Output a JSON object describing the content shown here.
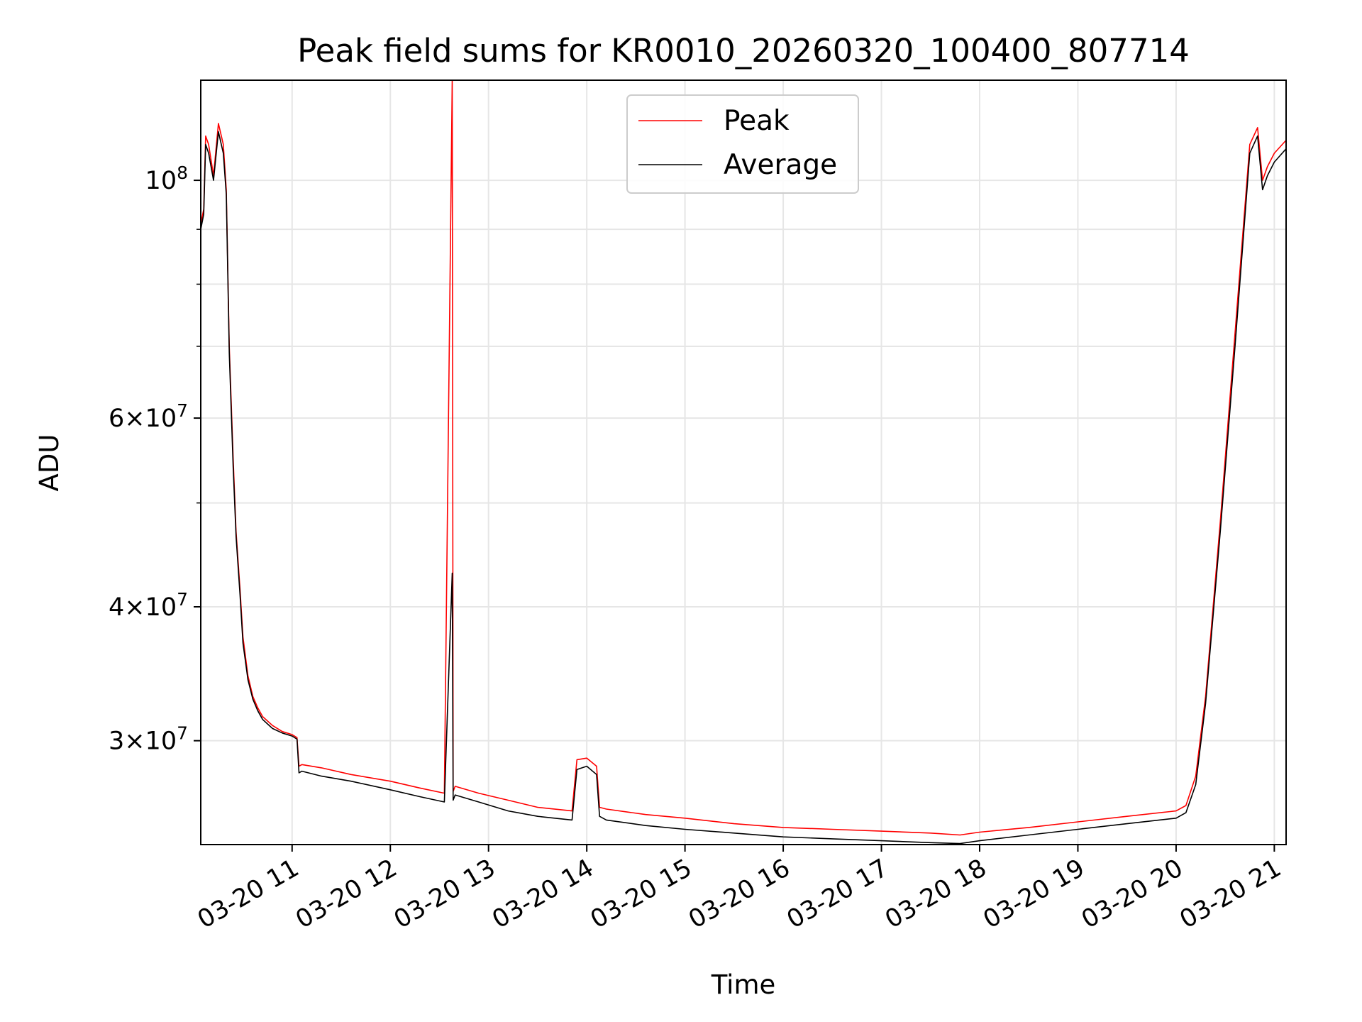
{
  "chart_data": {
    "type": "line",
    "title": "Peak field sums for KR0010_20260320_100400_807714",
    "xlabel": "Time",
    "ylabel": "ADU",
    "yscale": "log",
    "xlim_hours": [
      10.07,
      21.12
    ],
    "ylim": [
      24000000,
      124000000
    ],
    "grid": true,
    "legend": {
      "position": "top-center",
      "entries": [
        "Peak",
        "Average"
      ]
    },
    "x_ticks": [
      {
        "hour": 11,
        "label": "03-20 11"
      },
      {
        "hour": 12,
        "label": "03-20 12"
      },
      {
        "hour": 13,
        "label": "03-20 13"
      },
      {
        "hour": 14,
        "label": "03-20 14"
      },
      {
        "hour": 15,
        "label": "03-20 15"
      },
      {
        "hour": 16,
        "label": "03-20 16"
      },
      {
        "hour": 17,
        "label": "03-20 17"
      },
      {
        "hour": 18,
        "label": "03-20 18"
      },
      {
        "hour": 19,
        "label": "03-20 19"
      },
      {
        "hour": 20,
        "label": "03-20 20"
      },
      {
        "hour": 21,
        "label": "03-20 21"
      }
    ],
    "y_ticks_major": [
      {
        "value": 30000000,
        "base": "3",
        "exp": "7"
      },
      {
        "value": 40000000,
        "base": "4",
        "exp": "7"
      },
      {
        "value": 60000000,
        "base": "6",
        "exp": "7"
      },
      {
        "value": 100000000,
        "base": "",
        "exp": "8"
      }
    ],
    "y_grid_minor": [
      50000000,
      70000000,
      80000000,
      90000000
    ],
    "series": [
      {
        "name": "Peak",
        "color": "#ff0000",
        "x_hours": [
          10.07,
          10.1,
          10.12,
          10.15,
          10.2,
          10.25,
          10.3,
          10.33,
          10.36,
          10.4,
          10.43,
          10.47,
          10.5,
          10.55,
          10.6,
          10.65,
          10.7,
          10.8,
          10.9,
          11.0,
          11.05,
          11.07,
          11.1,
          11.3,
          11.6,
          12.0,
          12.3,
          12.55,
          12.63,
          12.64,
          12.66,
          12.9,
          13.2,
          13.5,
          13.85,
          13.9,
          14.0,
          14.1,
          14.13,
          14.2,
          14.6,
          15.0,
          15.5,
          16.0,
          16.5,
          17.0,
          17.5,
          17.8,
          18.0,
          18.5,
          19.0,
          19.5,
          20.0,
          20.1,
          20.2,
          20.3,
          20.45,
          20.6,
          20.75,
          20.83,
          20.88,
          20.93,
          21.0,
          21.12
        ],
        "values": [
          91000000,
          94000000,
          110000000,
          108000000,
          101000000,
          113000000,
          108000000,
          98000000,
          70000000,
          55000000,
          47000000,
          41500000,
          37500000,
          34500000,
          33000000,
          32200000,
          31600000,
          31000000,
          30600000,
          30400000,
          30200000,
          28400000,
          28500000,
          28300000,
          27900000,
          27500000,
          27100000,
          26800000,
          124000000,
          26900000,
          27200000,
          26800000,
          26400000,
          26000000,
          25800000,
          28800000,
          28900000,
          28400000,
          26000000,
          25900000,
          25600000,
          25400000,
          25100000,
          24900000,
          24800000,
          24700000,
          24600000,
          24500000,
          24650000,
          24900000,
          25200000,
          25500000,
          25800000,
          26100000,
          27800000,
          33000000,
          48000000,
          72000000,
          108000000,
          112000000,
          100000000,
          103000000,
          106000000,
          109000000
        ]
      },
      {
        "name": "Average",
        "color": "#000000",
        "x_hours": [
          10.07,
          10.1,
          10.12,
          10.15,
          10.2,
          10.25,
          10.3,
          10.33,
          10.36,
          10.4,
          10.43,
          10.47,
          10.5,
          10.55,
          10.6,
          10.65,
          10.7,
          10.8,
          10.9,
          11.0,
          11.05,
          11.07,
          11.1,
          11.3,
          11.6,
          12.0,
          12.3,
          12.55,
          12.63,
          12.64,
          12.66,
          12.9,
          13.2,
          13.5,
          13.85,
          13.9,
          14.0,
          14.1,
          14.13,
          14.2,
          14.6,
          15.0,
          15.5,
          16.0,
          16.5,
          17.0,
          17.5,
          17.8,
          18.0,
          18.5,
          19.0,
          19.5,
          20.0,
          20.1,
          20.2,
          20.3,
          20.45,
          20.6,
          20.75,
          20.83,
          20.88,
          20.93,
          21.0,
          21.12
        ],
        "values": [
          90000000,
          93000000,
          108000000,
          106000000,
          100000000,
          111000000,
          106000000,
          97000000,
          69000000,
          54000000,
          46500000,
          41000000,
          37000000,
          34200000,
          32800000,
          32000000,
          31400000,
          30800000,
          30500000,
          30300000,
          30100000,
          28000000,
          28100000,
          27800000,
          27500000,
          27000000,
          26600000,
          26300000,
          43000000,
          26400000,
          26700000,
          26300000,
          25800000,
          25500000,
          25300000,
          28200000,
          28400000,
          27900000,
          25500000,
          25300000,
          25000000,
          24800000,
          24600000,
          24400000,
          24300000,
          24200000,
          24100000,
          24050000,
          24200000,
          24500000,
          24800000,
          25100000,
          25400000,
          25700000,
          27300000,
          32500000,
          47000000,
          70000000,
          106000000,
          110000000,
          98000000,
          101000000,
          104000000,
          107000000
        ]
      }
    ]
  }
}
